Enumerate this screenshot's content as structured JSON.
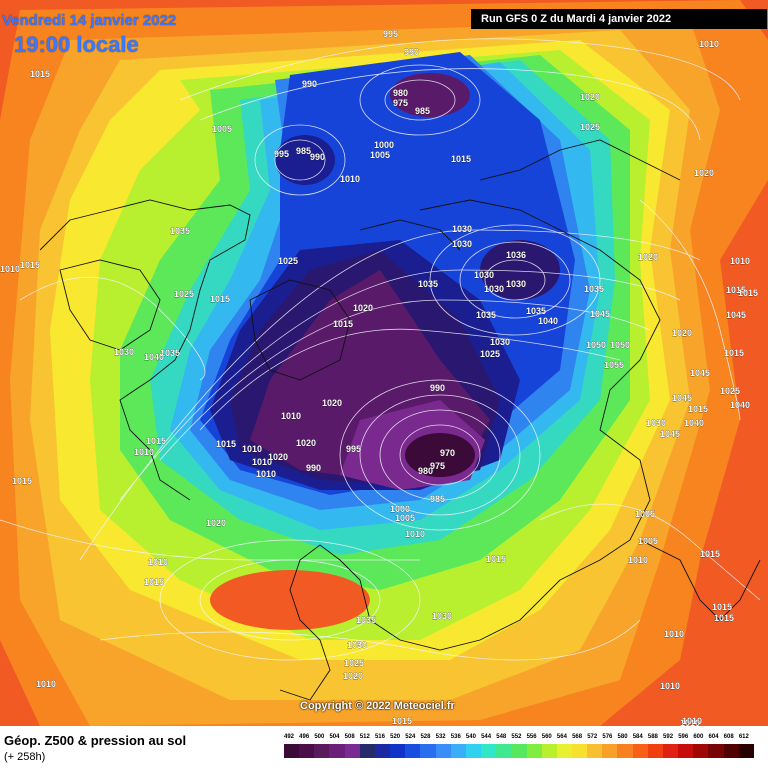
{
  "header": {
    "date": "Vendredi 14 janvier 2022",
    "time": "19:00 locale",
    "run": "Run GFS 0 Z du Mardi 4 janvier 2022"
  },
  "copyright": "Copyright © 2022 Meteociel.fr",
  "footer": {
    "title": "Géop. Z500 & pression au sol",
    "subtitle": "(+ 258h)"
  },
  "legend": {
    "values": [
      "492",
      "496",
      "500",
      "504",
      "508",
      "512",
      "516",
      "520",
      "524",
      "528",
      "532",
      "536",
      "540",
      "544",
      "548",
      "552",
      "556",
      "560",
      "564",
      "568",
      "572",
      "576",
      "580",
      "584",
      "588",
      "592",
      "596",
      "600",
      "604",
      "608",
      "612"
    ],
    "colors": [
      "#3b0a38",
      "#4a0f4a",
      "#5c1a5e",
      "#6a1f78",
      "#7a2a92",
      "#242a6a",
      "#1b2aa0",
      "#1233c8",
      "#1a4ee0",
      "#2a6ef0",
      "#3a8ef8",
      "#3aaef8",
      "#30d0f0",
      "#30e8c8",
      "#40e890",
      "#58e860",
      "#80ee40",
      "#b8f030",
      "#e8f030",
      "#f8e030",
      "#f8c030",
      "#f8a028",
      "#f88020",
      "#f86018",
      "#f04010",
      "#e02010",
      "#c80c0c",
      "#a00808",
      "#780404",
      "#500000",
      "#280000"
    ]
  },
  "map": {
    "colors": {
      "red": "#f25a24",
      "orange": "#f7841f",
      "light_orange": "#f8a42a",
      "gold": "#f8c431",
      "yellow": "#f8e830",
      "lime": "#b8f030",
      "green": "#5de85a",
      "teal": "#35d8c0",
      "cyan": "#34b8f0",
      "light_blue": "#2f84f0",
      "blue": "#1744d8",
      "navy": "#1a1e90",
      "indigo": "#2a1870",
      "purple": "#5a1a6a",
      "magenta": "#7a2a8e",
      "contour": "#f4f4ff",
      "coast": "#101010"
    },
    "labels": [
      {
        "t": "995"
      },
      {
        "t": "990"
      },
      {
        "t": "1010"
      },
      {
        "t": "1015"
      },
      {
        "t": "990"
      },
      {
        "t": "980"
      },
      {
        "t": "975"
      },
      {
        "t": "985"
      },
      {
        "t": "1020"
      },
      {
        "t": "1025"
      },
      {
        "t": "1005"
      },
      {
        "t": "995"
      },
      {
        "t": "985"
      },
      {
        "t": "990"
      },
      {
        "t": "1000"
      },
      {
        "t": "1005"
      },
      {
        "t": "1015"
      },
      {
        "t": "1010"
      },
      {
        "t": "1020"
      },
      {
        "t": "1035"
      },
      {
        "t": "1030"
      },
      {
        "t": "1030"
      },
      {
        "t": "1036"
      },
      {
        "t": "1020"
      },
      {
        "t": "1010"
      },
      {
        "t": "1015"
      },
      {
        "t": "1025"
      },
      {
        "t": "1030"
      },
      {
        "t": "1030"
      },
      {
        "t": "1030"
      },
      {
        "t": "1035"
      },
      {
        "t": "1035"
      },
      {
        "t": "1010"
      },
      {
        "t": "1015"
      },
      {
        "t": "1025"
      },
      {
        "t": "1015"
      },
      {
        "t": "1020"
      },
      {
        "t": "1015"
      },
      {
        "t": "1035"
      },
      {
        "t": "1035"
      },
      {
        "t": "1040"
      },
      {
        "t": "1045"
      },
      {
        "t": "1015"
      },
      {
        "t": "1045"
      },
      {
        "t": "1050"
      },
      {
        "t": "1050"
      },
      {
        "t": "1030"
      },
      {
        "t": "1025"
      },
      {
        "t": "1020"
      },
      {
        "t": "1055"
      },
      {
        "t": "1030"
      },
      {
        "t": "1035"
      },
      {
        "t": "1040"
      },
      {
        "t": "1015"
      },
      {
        "t": "1045"
      },
      {
        "t": "1025"
      },
      {
        "t": "1020"
      },
      {
        "t": "990"
      },
      {
        "t": "1010"
      },
      {
        "t": "1045"
      },
      {
        "t": "1030"
      },
      {
        "t": "1015"
      },
      {
        "t": "1010"
      },
      {
        "t": "995"
      },
      {
        "t": "970"
      },
      {
        "t": "1040"
      },
      {
        "t": "1045"
      },
      {
        "t": "1015"
      },
      {
        "t": "1010"
      },
      {
        "t": "1010"
      },
      {
        "t": "1020"
      },
      {
        "t": "1020"
      },
      {
        "t": "990"
      },
      {
        "t": "980"
      },
      {
        "t": "975"
      },
      {
        "t": "1010"
      },
      {
        "t": "985"
      },
      {
        "t": "1000"
      },
      {
        "t": "1005"
      },
      {
        "t": "1005"
      },
      {
        "t": "1010"
      },
      {
        "t": "1020"
      },
      {
        "t": "1005"
      },
      {
        "t": "1010"
      },
      {
        "t": "1015"
      },
      {
        "t": "1015"
      },
      {
        "t": "1010"
      },
      {
        "t": "1015"
      },
      {
        "t": "1035"
      },
      {
        "t": "1030"
      },
      {
        "t": "1030"
      },
      {
        "t": "1025"
      },
      {
        "t": "1020"
      },
      {
        "t": "1010"
      },
      {
        "t": "1015"
      },
      {
        "t": "1015"
      },
      {
        "t": "1010"
      },
      {
        "t": "1010"
      },
      {
        "t": "1015"
      },
      {
        "t": "1010"
      },
      {
        "t": "1015"
      },
      {
        "t": "1040"
      },
      {
        "t": "1015"
      },
      {
        "t": "1010"
      }
    ]
  }
}
